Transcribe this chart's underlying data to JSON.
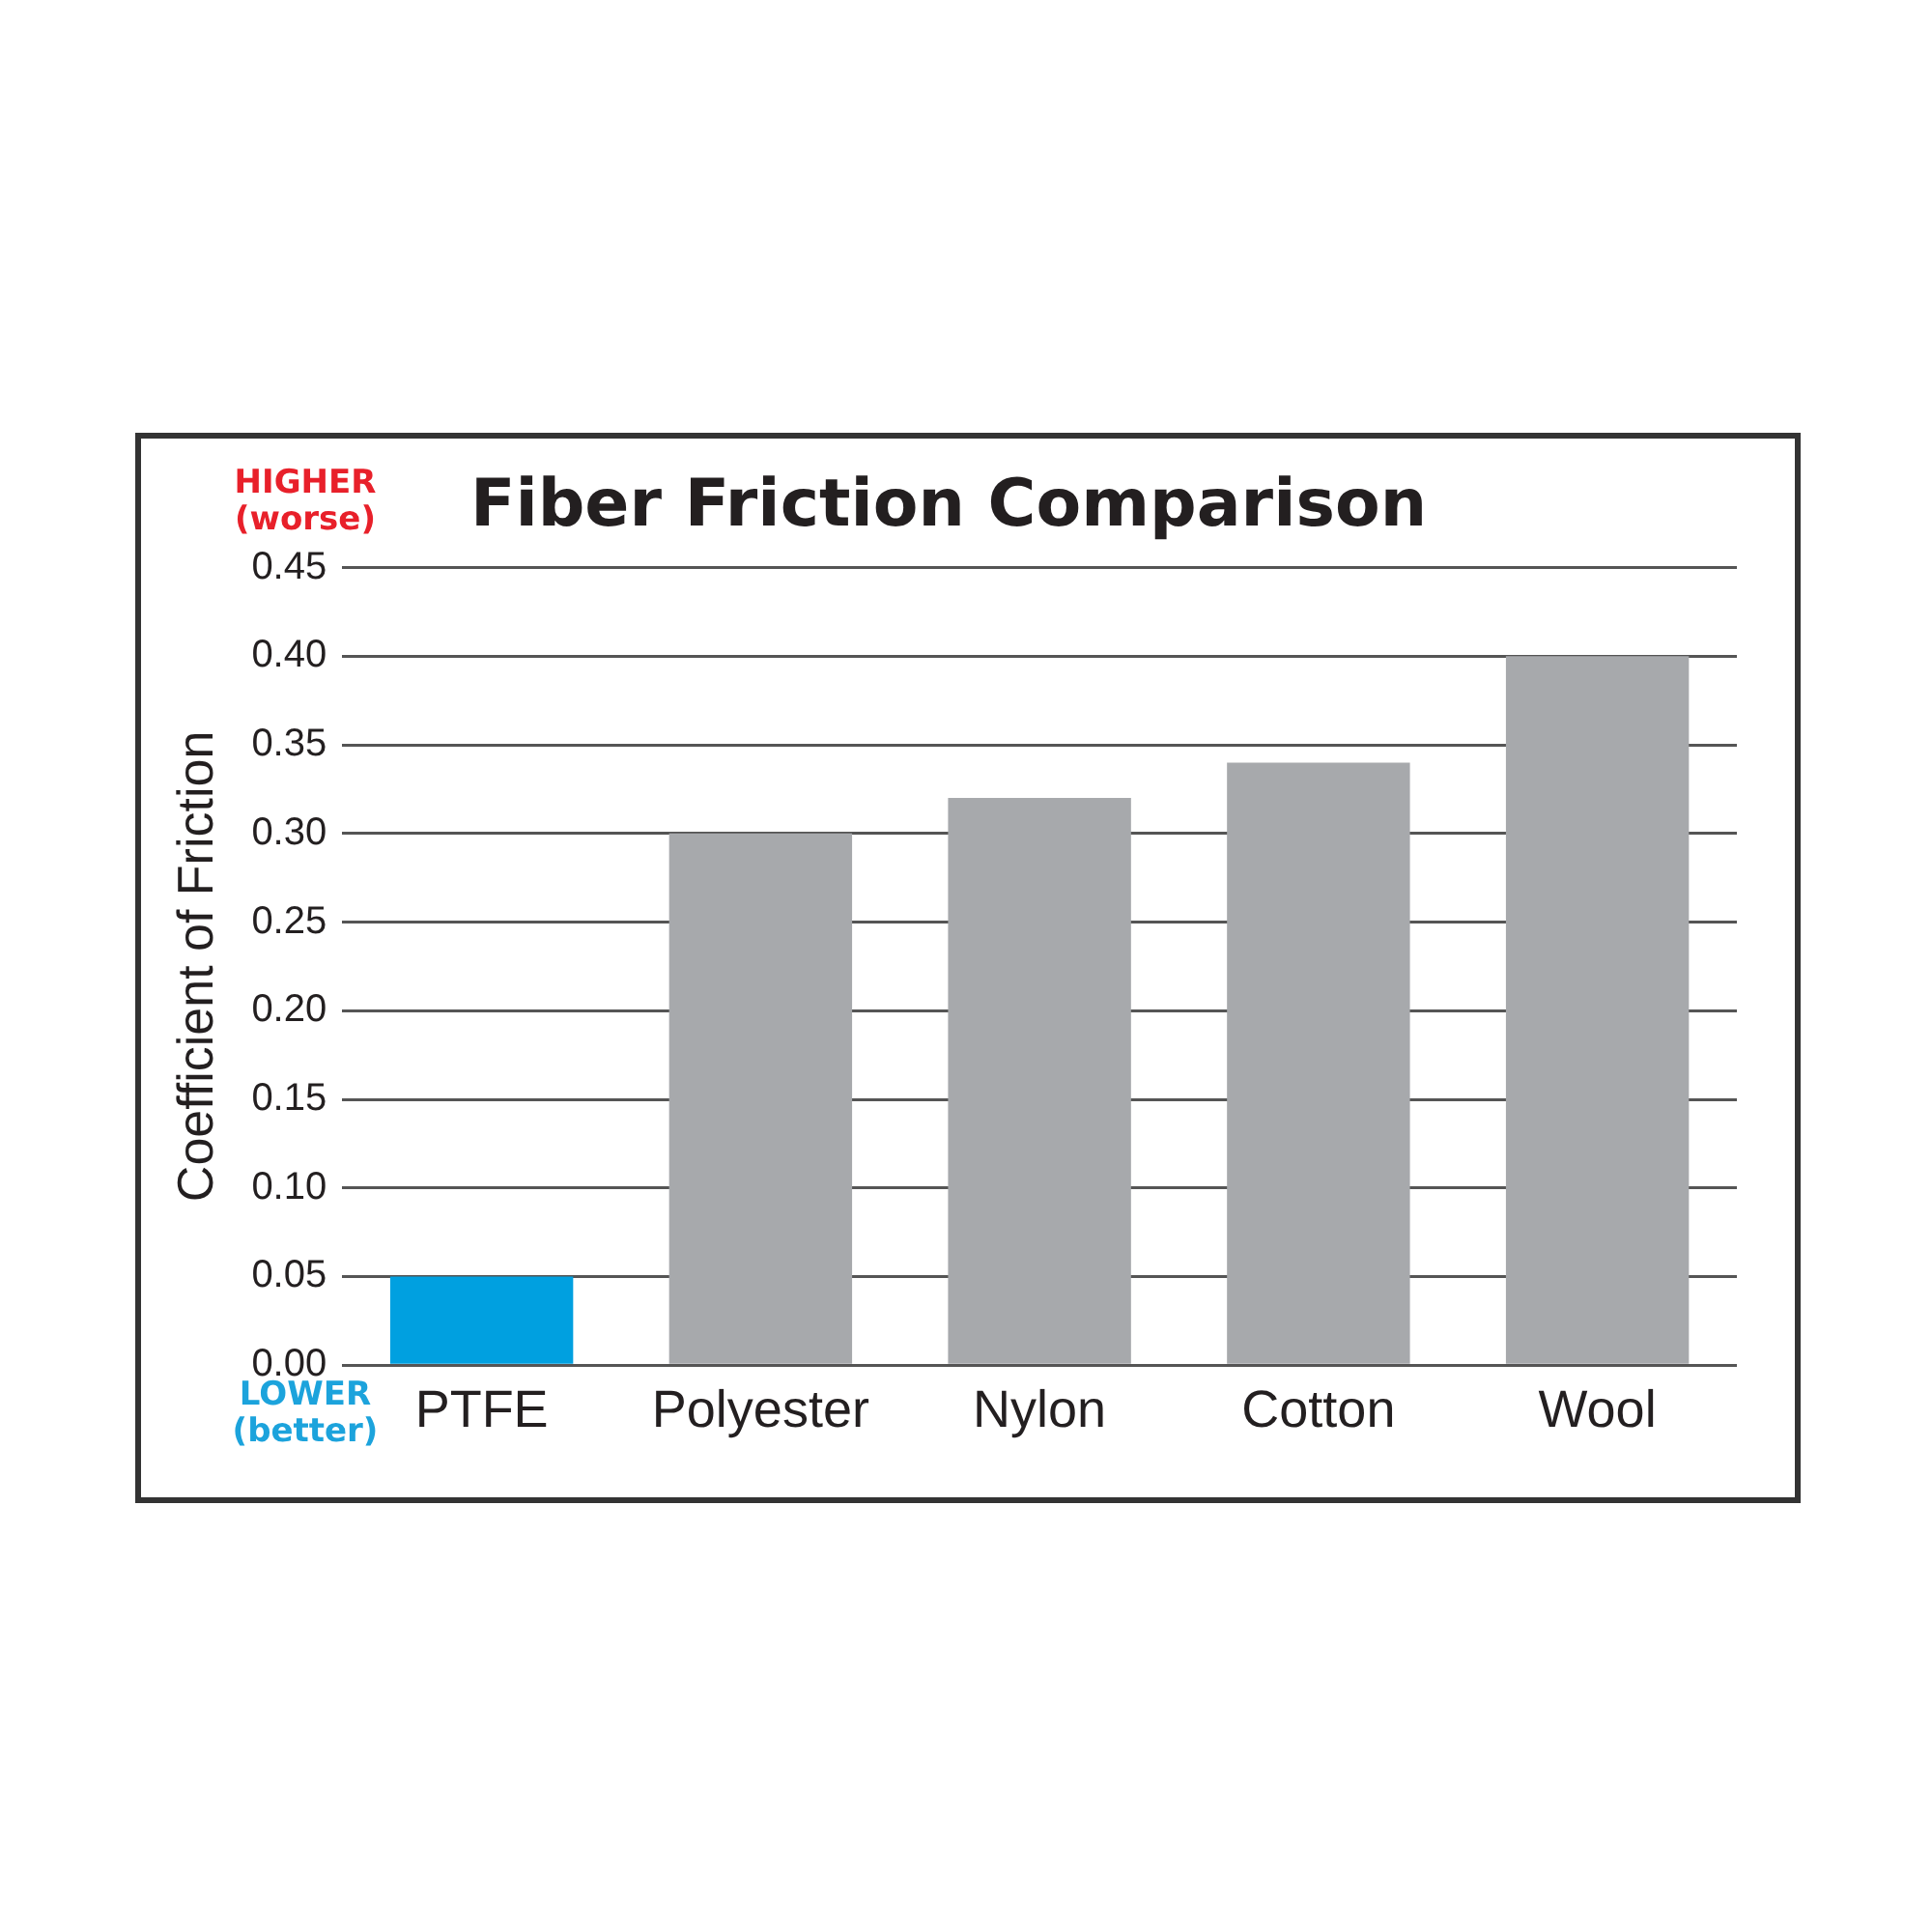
{
  "chart_data": {
    "type": "bar",
    "title": "Fiber Friction Comparison",
    "ylabel": "Coefficient of Friction",
    "categories": [
      "PTFE",
      "Polyester",
      "Nylon",
      "Cotton",
      "Wool"
    ],
    "values": [
      0.05,
      0.3,
      0.32,
      0.34,
      0.4
    ],
    "colors": [
      "#00a0e0",
      "#a7a9ac",
      "#a7a9ac",
      "#a7a9ac",
      "#a7a9ac"
    ],
    "ylim": [
      0,
      0.45
    ],
    "yticks": [
      {
        "value": 0,
        "label": "0.00"
      },
      {
        "value": 0.05,
        "label": "0.05"
      },
      {
        "value": 0.1,
        "label": "0.10"
      },
      {
        "value": 0.15,
        "label": "0.15"
      },
      {
        "value": 0.2,
        "label": "0.20"
      },
      {
        "value": 0.25,
        "label": "0.25"
      },
      {
        "value": 0.3,
        "label": "0.30"
      },
      {
        "value": 0.35,
        "label": "0.35"
      },
      {
        "value": 0.4,
        "label": "0.40"
      },
      {
        "value": 0.45,
        "label": "0.45"
      }
    ],
    "grid": "y",
    "legend": false,
    "annotations": [
      "HIGHER (worse)",
      "LOWER (better)"
    ]
  }
}
